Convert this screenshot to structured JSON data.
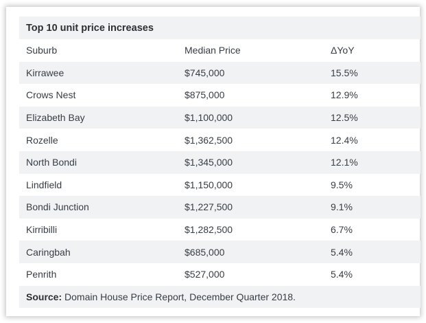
{
  "table": {
    "title": "Top 10 unit price increases",
    "headers": [
      "Suburb",
      "Median Price",
      "ΔYoY"
    ],
    "rows": [
      [
        "Kirrawee",
        "$745,000",
        "15.5%"
      ],
      [
        "Crows Nest",
        "$875,000",
        "12.9%"
      ],
      [
        "Elizabeth Bay",
        "$1,100,000",
        "12.5%"
      ],
      [
        "Rozelle",
        "$1,362,500",
        "12.4%"
      ],
      [
        "North Bondi",
        "$1,345,000",
        "12.1%"
      ],
      [
        "Lindfield",
        "$1,150,000",
        "9.5%"
      ],
      [
        "Bondi Junction",
        "$1,227,500",
        "9.1%"
      ],
      [
        "Kirribilli",
        "$1,282,500",
        "6.7%"
      ],
      [
        "Caringbah",
        "$685,000",
        "5.4%"
      ],
      [
        "Penrith",
        "$527,000",
        "5.4%"
      ]
    ],
    "source_label": "Source:",
    "source_text": " Domain House Price Report, December Quarter 2018."
  }
}
